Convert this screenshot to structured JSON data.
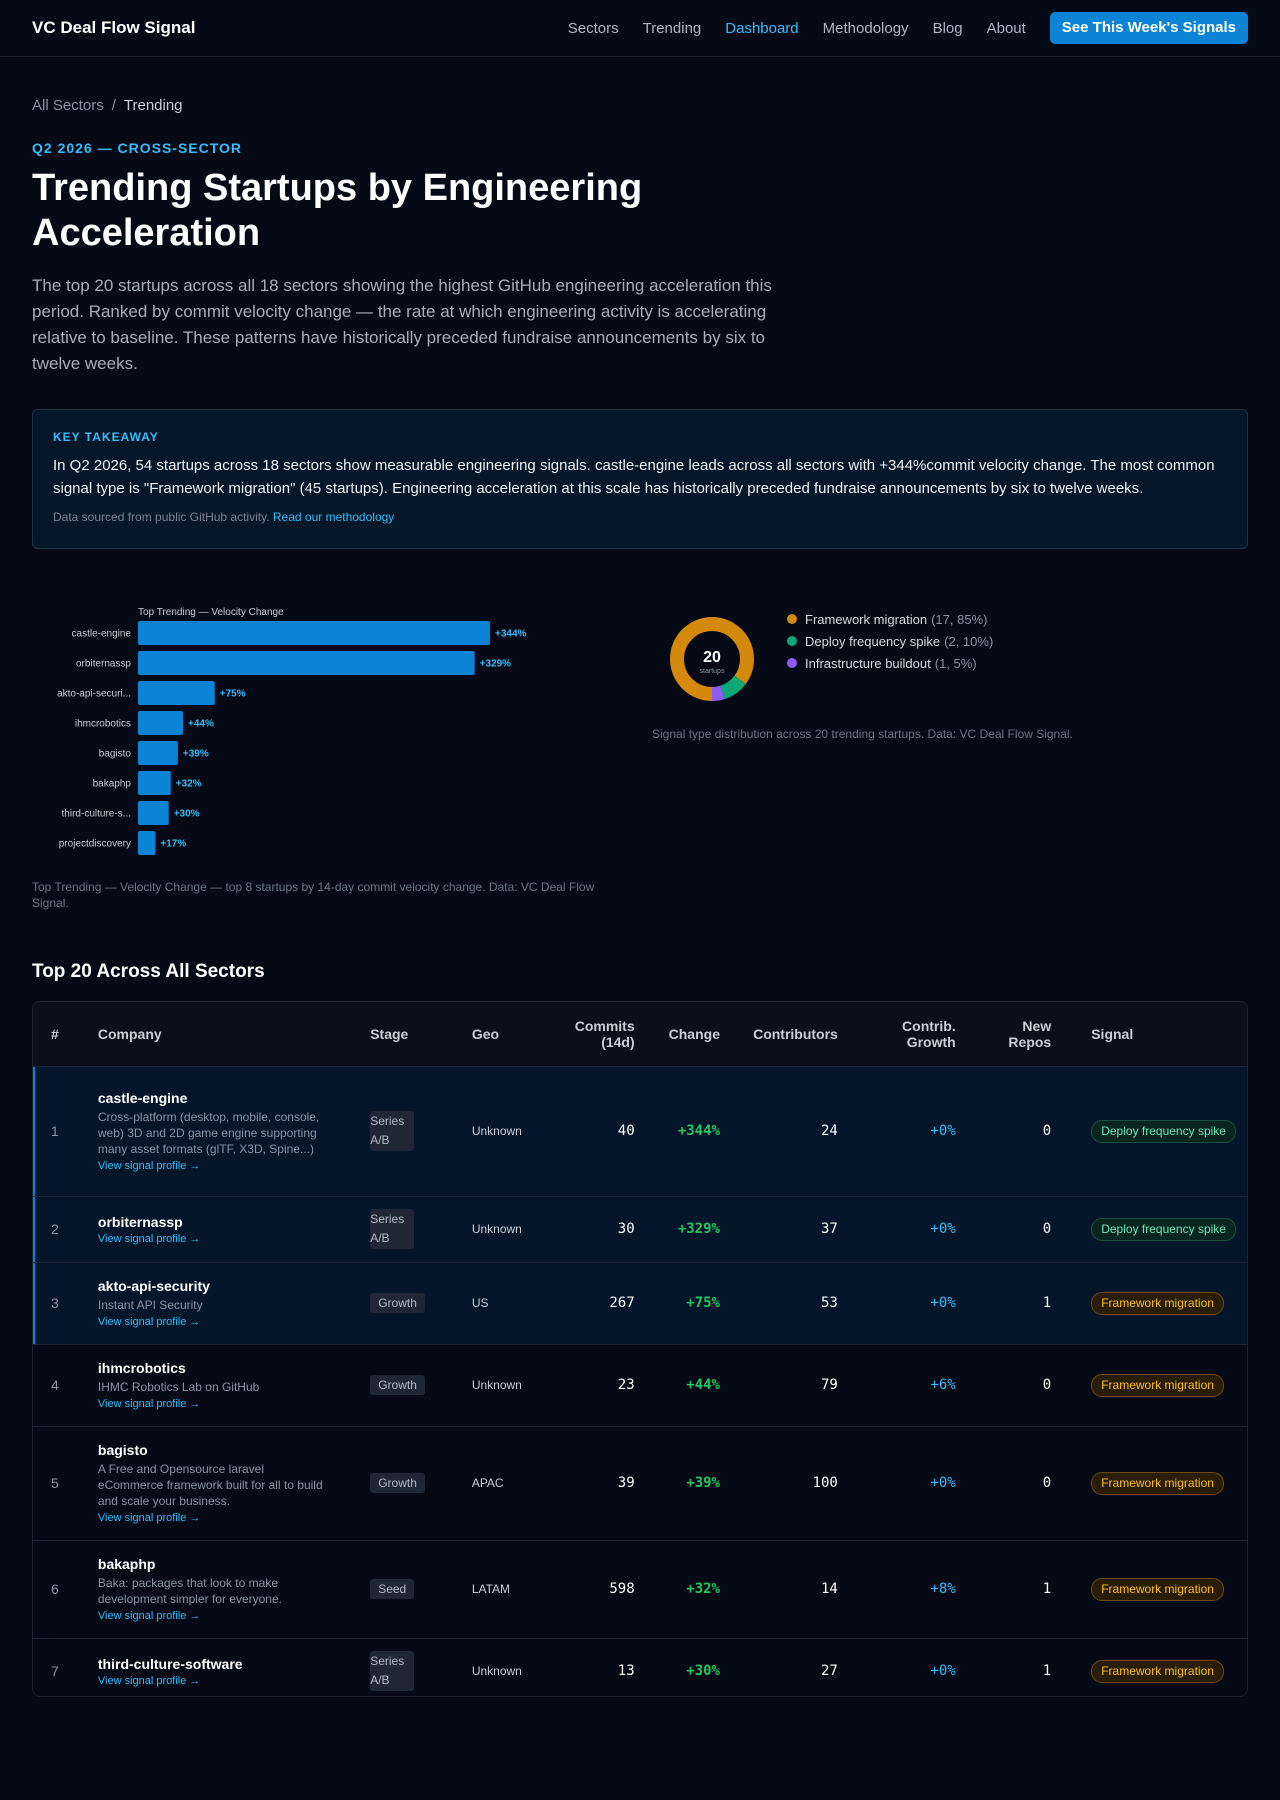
{
  "nav": {
    "brand": "VC Deal Flow Signal",
    "links": [
      "Sectors",
      "Trending",
      "Dashboard",
      "Methodology",
      "Blog",
      "About"
    ],
    "active": "Dashboard",
    "cta": "See This Week's Signals"
  },
  "breadcrumb": {
    "root": "All Sectors",
    "sep": "/",
    "current": "Trending"
  },
  "hero": {
    "eyebrow": "Q2 2026 — CROSS-SECTOR",
    "title": "Trending Startups by Engineering Acceleration",
    "lede": "The top 20 startups across all 18 sectors showing the highest GitHub engineering acceleration this period. Ranked by commit velocity change — the rate at which engineering activity is accelerating relative to baseline. These patterns have historically preceded fundraise announcements by six to twelve weeks."
  },
  "takeaway": {
    "label": "KEY TAKEAWAY",
    "body": "In Q2 2026, 54 startups across 18 sectors show measurable engineering signals. castle-engine leads across all sectors with +344%commit velocity change. The most common signal type is \"Framework migration\" (45 startups). Engineering acceleration at this scale has historically preceded fundraise announcements by six to twelve weeks.",
    "source_text": "Data sourced from public GitHub activity.",
    "source_link": "Read our methodology"
  },
  "chart_data": [
    {
      "type": "bar",
      "orientation": "horizontal",
      "title": "Top Trending — Velocity Change",
      "categories": [
        "castle-engine",
        "orbiternassp",
        "akto-api-securi...",
        "ihmcrobotics",
        "bagisto",
        "bakaphp",
        "third-culture-s...",
        "projectdiscovery"
      ],
      "values": [
        344,
        329,
        75,
        44,
        39,
        32,
        30,
        17
      ],
      "labels": [
        "+344%",
        "+329%",
        "+75%",
        "+44%",
        "+39%",
        "+32%",
        "+30%",
        "+17%"
      ],
      "color": "#0b84d6",
      "label_color": "#38bdf8",
      "caption": "Top Trending — Velocity Change — top 8 startups by 14-day commit velocity change. Data: VC Deal Flow Signal."
    },
    {
      "type": "pie",
      "variant": "donut",
      "center_value": "20",
      "center_label": "startups",
      "slices": [
        {
          "name": "Framework migration",
          "value": 17,
          "meta": "(17, 85%)",
          "color": "#d4890b"
        },
        {
          "name": "Deploy frequency spike",
          "value": 2,
          "meta": "(2, 10%)",
          "color": "#10a776"
        },
        {
          "name": "Infrastructure buildout",
          "value": 1,
          "meta": "(1, 5%)",
          "color": "#8b5cf6"
        }
      ],
      "caption": "Signal type distribution across 20 trending startups. Data: VC Deal Flow Signal."
    }
  ],
  "table": {
    "title": "Top 20 Across All Sectors",
    "headers": {
      "rank": "#",
      "company": "Company",
      "stage": "Stage",
      "geo": "Geo",
      "commits_1": "Commits",
      "commits_2": "(14d)",
      "change": "Change",
      "contributors": "Contributors",
      "cg_1": "Contrib.",
      "cg_2": "Growth",
      "repos_1": "New",
      "repos_2": "Repos",
      "signal": "Signal"
    },
    "link_label": "View signal profile →",
    "rows": [
      {
        "rank": "1",
        "name": "castle-engine",
        "desc": "Cross-platform (desktop, mobile, console, web) 3D and 2D game engine supporting many asset formats (glTF, X3D, Spine...)",
        "stage_1": "Series",
        "stage_2": "A/B",
        "geo": "Unknown",
        "commits": "40",
        "change": "+344%",
        "contributors": "24",
        "contrib_growth": "+0%",
        "new_repos": "0",
        "signal": "Deploy frequency spike",
        "signal_type": "deploy",
        "highlight": true
      },
      {
        "rank": "2",
        "name": "orbiternassp",
        "desc": "",
        "stage_1": "Series",
        "stage_2": "A/B",
        "geo": "Unknown",
        "commits": "30",
        "change": "+329%",
        "contributors": "37",
        "contrib_growth": "+0%",
        "new_repos": "0",
        "signal": "Deploy frequency spike",
        "signal_type": "deploy",
        "highlight": true
      },
      {
        "rank": "3",
        "name": "akto-api-security",
        "desc": "Instant API Security",
        "stage_1": "Growth",
        "stage_2": "",
        "geo": "US",
        "commits": "267",
        "change": "+75%",
        "contributors": "53",
        "contrib_growth": "+0%",
        "new_repos": "1",
        "signal": "Framework migration",
        "signal_type": "framework",
        "highlight": true
      },
      {
        "rank": "4",
        "name": "ihmcrobotics",
        "desc": "IHMC Robotics Lab on GitHub",
        "stage_1": "Growth",
        "stage_2": "",
        "geo": "Unknown",
        "commits": "23",
        "change": "+44%",
        "contributors": "79",
        "contrib_growth": "+6%",
        "new_repos": "0",
        "signal": "Framework migration",
        "signal_type": "framework",
        "highlight": false
      },
      {
        "rank": "5",
        "name": "bagisto",
        "desc": "A Free and Opensource laravel eCommerce framework built for all to build and scale your business.",
        "stage_1": "Growth",
        "stage_2": "",
        "geo": "APAC",
        "commits": "39",
        "change": "+39%",
        "contributors": "100",
        "contrib_growth": "+0%",
        "new_repos": "0",
        "signal": "Framework migration",
        "signal_type": "framework",
        "highlight": false
      },
      {
        "rank": "6",
        "name": "bakaphp",
        "desc": "Baka: packages that look to make development simpler for everyone.",
        "stage_1": "Seed",
        "stage_2": "",
        "geo": "LATAM",
        "commits": "598",
        "change": "+32%",
        "contributors": "14",
        "contrib_growth": "+8%",
        "new_repos": "1",
        "signal": "Framework migration",
        "signal_type": "framework",
        "highlight": false
      },
      {
        "rank": "7",
        "name": "third-culture-software",
        "desc": "",
        "stage_1": "Series",
        "stage_2": "A/B",
        "geo": "Unknown",
        "commits": "13",
        "change": "+30%",
        "contributors": "27",
        "contrib_growth": "+0%",
        "new_repos": "1",
        "signal": "Framework migration",
        "signal_type": "framework",
        "highlight": false
      }
    ]
  }
}
